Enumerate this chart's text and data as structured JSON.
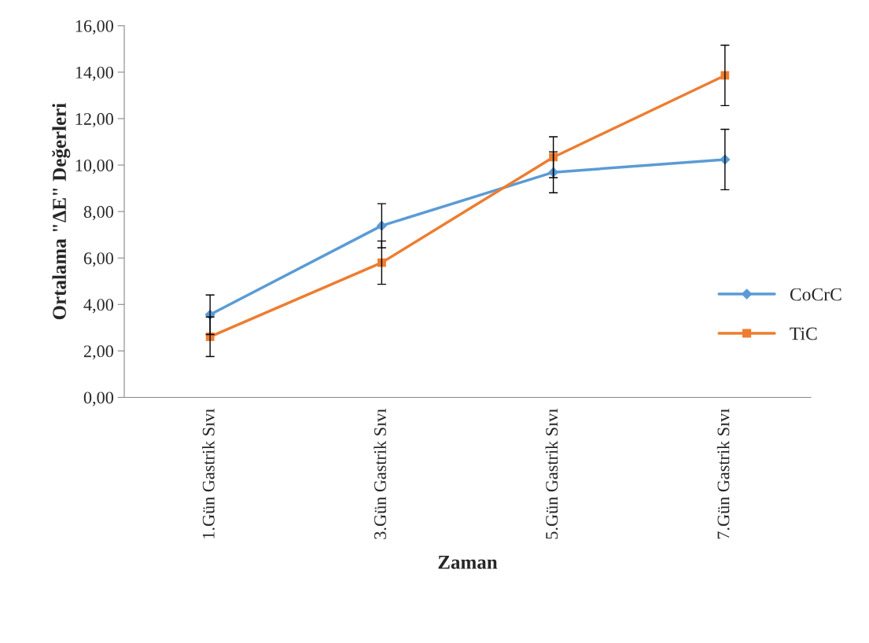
{
  "chart_data": {
    "type": "line",
    "xlabel": "Zaman",
    "ylabel": "Ortalama \"ΔE\" Değerleri",
    "categories": [
      "1.Gün Gastrik Sıvı",
      "3.Gün Gastrik Sıvı",
      "5.Gün Gastrik Sıvı",
      "7.Gün Gastrik Sıvı"
    ],
    "series": [
      {
        "name": "CoCrC",
        "color": "#5b9bd5",
        "marker": "diamond",
        "values": [
          3.56,
          7.39,
          9.69,
          10.24
        ],
        "errors": [
          0.85,
          0.95,
          0.88,
          1.3
        ]
      },
      {
        "name": "TiC",
        "color": "#ed7d31",
        "marker": "square",
        "values": [
          2.61,
          5.8,
          10.34,
          13.86
        ],
        "errors": [
          0.85,
          0.93,
          0.88,
          1.3
        ]
      }
    ],
    "ylim": [
      0,
      16
    ],
    "yticks": [
      {
        "value": 0,
        "label": "0,00"
      },
      {
        "value": 2,
        "label": "2,00"
      },
      {
        "value": 4,
        "label": "4,00"
      },
      {
        "value": 6,
        "label": "6,00"
      },
      {
        "value": 8,
        "label": "8,00"
      },
      {
        "value": 10,
        "label": "10,00"
      },
      {
        "value": 12,
        "label": "12,00"
      },
      {
        "value": 14,
        "label": "14,00"
      },
      {
        "value": 16,
        "label": "16,00"
      }
    ],
    "grid": false,
    "legend": "right",
    "line_style": "solid"
  }
}
